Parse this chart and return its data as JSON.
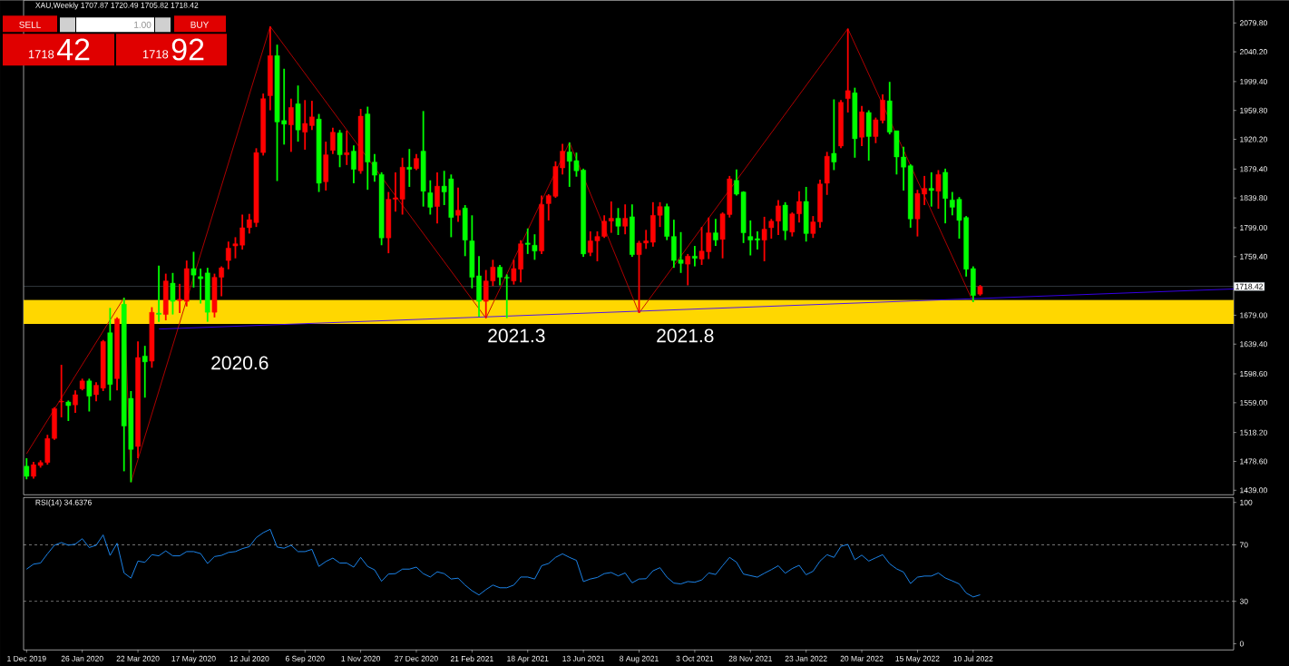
{
  "chart_data": [
    {
      "type": "candlestick",
      "title": "XAU,Weekly 1707.87 1720.49 1705.82 1718.42",
      "x": [
        "2019-12-01",
        "2019-12-08",
        "2019-12-15",
        "2019-12-22",
        "2019-12-29",
        "2020-01-05",
        "2020-01-12",
        "2020-01-19",
        "2020-01-26",
        "2020-02-02",
        "2020-02-09",
        "2020-02-16",
        "2020-02-23",
        "2020-03-01",
        "2020-03-08",
        "2020-03-15",
        "2020-03-22",
        "2020-03-29",
        "2020-04-05",
        "2020-04-12",
        "2020-04-19",
        "2020-04-26",
        "2020-05-03",
        "2020-05-10",
        "2020-05-17",
        "2020-05-24",
        "2020-05-31",
        "2020-06-07",
        "2020-06-14",
        "2020-06-21",
        "2020-06-28",
        "2020-07-05",
        "2020-07-12",
        "2020-07-19",
        "2020-07-26",
        "2020-08-02",
        "2020-08-09",
        "2020-08-16",
        "2020-08-23",
        "2020-08-30",
        "2020-09-06",
        "2020-09-13",
        "2020-09-20",
        "2020-09-27",
        "2020-10-04",
        "2020-10-11",
        "2020-10-18",
        "2020-10-25",
        "2020-11-01",
        "2020-11-08",
        "2020-11-15",
        "2020-11-22",
        "2020-11-29",
        "2020-12-06",
        "2020-12-13",
        "2020-12-20",
        "2020-12-27",
        "2021-01-03",
        "2021-01-10",
        "2021-01-17",
        "2021-01-24",
        "2021-01-31",
        "2021-02-07",
        "2021-02-14",
        "2021-02-21",
        "2021-02-28",
        "2021-03-07",
        "2021-03-14",
        "2021-03-21",
        "2021-03-28",
        "2021-04-04",
        "2021-04-11",
        "2021-04-18",
        "2021-04-25",
        "2021-05-02",
        "2021-05-09",
        "2021-05-16",
        "2021-05-23",
        "2021-05-30",
        "2021-06-06",
        "2021-06-13",
        "2021-06-20",
        "2021-06-27",
        "2021-07-04",
        "2021-07-11",
        "2021-07-18",
        "2021-07-25",
        "2021-08-01",
        "2021-08-08",
        "2021-08-15",
        "2021-08-22",
        "2021-08-29",
        "2021-09-05",
        "2021-09-12",
        "2021-09-19",
        "2021-09-26",
        "2021-10-03",
        "2021-10-10",
        "2021-10-17",
        "2021-10-24",
        "2021-10-31",
        "2021-11-07",
        "2021-11-14",
        "2021-11-21",
        "2021-11-28",
        "2021-12-05",
        "2021-12-12",
        "2021-12-19",
        "2021-12-26",
        "2022-01-02",
        "2022-01-09",
        "2022-01-16",
        "2022-01-23",
        "2022-01-30",
        "2022-02-06",
        "2022-02-13",
        "2022-02-20",
        "2022-02-27",
        "2022-03-06",
        "2022-03-13",
        "2022-03-20",
        "2022-03-27",
        "2022-04-03",
        "2022-04-10",
        "2022-04-17",
        "2022-04-24",
        "2022-05-01",
        "2022-05-08",
        "2022-05-15",
        "2022-05-22",
        "2022-05-29",
        "2022-06-05",
        "2022-06-12",
        "2022-06-19",
        "2022-06-26",
        "2022-07-03",
        "2022-07-10",
        "2022-07-17"
      ],
      "ohlc": [
        [
          1472,
          1483,
          1454,
          1458
        ],
        [
          1458,
          1478,
          1455,
          1474
        ],
        [
          1473,
          1480,
          1470,
          1477
        ],
        [
          1477,
          1515,
          1474,
          1510
        ],
        [
          1510,
          1553,
          1508,
          1551
        ],
        [
          1560,
          1611,
          1539,
          1561
        ],
        [
          1560,
          1562,
          1534,
          1555
        ],
        [
          1556,
          1576,
          1545,
          1570
        ],
        [
          1578,
          1592,
          1576,
          1589
        ],
        [
          1589,
          1592,
          1547,
          1568
        ],
        [
          1570,
          1587,
          1561,
          1583
        ],
        [
          1579,
          1645,
          1575,
          1643
        ],
        [
          1655,
          1689,
          1562,
          1584
        ],
        [
          1592,
          1676,
          1576,
          1674
        ],
        [
          1694,
          1703,
          1465,
          1527
        ],
        [
          1565,
          1575,
          1450,
          1495
        ],
        [
          1499,
          1643,
          1483,
          1621
        ],
        [
          1623,
          1637,
          1566,
          1615
        ],
        [
          1616,
          1690,
          1607,
          1683
        ],
        [
          1682,
          1747,
          1670,
          1680
        ],
        [
          1680,
          1736,
          1672,
          1726
        ],
        [
          1723,
          1737,
          1680,
          1698
        ],
        [
          1699,
          1722,
          1682,
          1701
        ],
        [
          1698,
          1754,
          1691,
          1743
        ],
        [
          1743,
          1766,
          1717,
          1734
        ],
        [
          1732,
          1743,
          1695,
          1729
        ],
        [
          1737,
          1744,
          1670,
          1683
        ],
        [
          1683,
          1736,
          1676,
          1731
        ],
        [
          1731,
          1746,
          1705,
          1744
        ],
        [
          1754,
          1780,
          1742,
          1771
        ],
        [
          1774,
          1786,
          1757,
          1777
        ],
        [
          1775,
          1817,
          1769,
          1799
        ],
        [
          1799,
          1818,
          1791,
          1810
        ],
        [
          1806,
          1908,
          1800,
          1902
        ],
        [
          1902,
          1983,
          1898,
          1976
        ],
        [
          1980,
          2075,
          1960,
          2035
        ],
        [
          2035,
          2050,
          1863,
          1944
        ],
        [
          1946,
          2017,
          1913,
          1941
        ],
        [
          1940,
          1976,
          1903,
          1964
        ],
        [
          1969,
          1994,
          1917,
          1933
        ],
        [
          1930,
          1974,
          1906,
          1942
        ],
        [
          1939,
          1973,
          1933,
          1951
        ],
        [
          1948,
          1955,
          1848,
          1860
        ],
        [
          1862,
          1917,
          1850,
          1899
        ],
        [
          1905,
          1936,
          1900,
          1930
        ],
        [
          1929,
          1933,
          1882,
          1899
        ],
        [
          1899,
          1932,
          1885,
          1902
        ],
        [
          1904,
          1912,
          1860,
          1879
        ],
        [
          1877,
          1962,
          1873,
          1952
        ],
        [
          1955,
          1965,
          1851,
          1889
        ],
        [
          1889,
          1900,
          1862,
          1871
        ],
        [
          1872,
          1875,
          1775,
          1785
        ],
        [
          1785,
          1848,
          1764,
          1838
        ],
        [
          1838,
          1875,
          1821,
          1840
        ],
        [
          1838,
          1895,
          1817,
          1882
        ],
        [
          1882,
          1907,
          1855,
          1879
        ],
        [
          1880,
          1900,
          1878,
          1894
        ],
        [
          1904,
          1959,
          1828,
          1849
        ],
        [
          1847,
          1864,
          1817,
          1827
        ],
        [
          1828,
          1875,
          1805,
          1856
        ],
        [
          1856,
          1877,
          1830,
          1848
        ],
        [
          1866,
          1872,
          1786,
          1813
        ],
        [
          1816,
          1854,
          1807,
          1823
        ],
        [
          1826,
          1830,
          1760,
          1782
        ],
        [
          1781,
          1816,
          1716,
          1731
        ],
        [
          1733,
          1760,
          1677,
          1698
        ],
        [
          1698,
          1741,
          1675,
          1726
        ],
        [
          1726,
          1755,
          1719,
          1745
        ],
        [
          1745,
          1748,
          1720,
          1731
        ],
        [
          1731,
          1735,
          1675,
          1730
        ],
        [
          1726,
          1755,
          1721,
          1743
        ],
        [
          1742,
          1782,
          1724,
          1777
        ],
        [
          1778,
          1798,
          1763,
          1776
        ],
        [
          1775,
          1790,
          1755,
          1767
        ],
        [
          1767,
          1843,
          1763,
          1831
        ],
        [
          1832,
          1845,
          1809,
          1843
        ],
        [
          1842,
          1890,
          1840,
          1883
        ],
        [
          1881,
          1914,
          1872,
          1904
        ],
        [
          1903,
          1916,
          1855,
          1890
        ],
        [
          1891,
          1902,
          1869,
          1877
        ],
        [
          1878,
          1880,
          1759,
          1763
        ],
        [
          1765,
          1794,
          1760,
          1781
        ],
        [
          1781,
          1794,
          1753,
          1787
        ],
        [
          1787,
          1816,
          1785,
          1808
        ],
        [
          1808,
          1835,
          1792,
          1812
        ],
        [
          1812,
          1826,
          1789,
          1801
        ],
        [
          1801,
          1831,
          1790,
          1812
        ],
        [
          1814,
          1831,
          1759,
          1762
        ],
        [
          1762,
          1781,
          1682,
          1778
        ],
        [
          1778,
          1796,
          1770,
          1781
        ],
        [
          1779,
          1834,
          1773,
          1816
        ],
        [
          1816,
          1834,
          1800,
          1828
        ],
        [
          1828,
          1832,
          1782,
          1787
        ],
        [
          1787,
          1810,
          1744,
          1754
        ],
        [
          1755,
          1793,
          1737,
          1750
        ],
        [
          1749,
          1763,
          1720,
          1760
        ],
        [
          1760,
          1774,
          1746,
          1757
        ],
        [
          1756,
          1800,
          1748,
          1767
        ],
        [
          1766,
          1813,
          1756,
          1792
        ],
        [
          1792,
          1811,
          1774,
          1782
        ],
        [
          1783,
          1820,
          1757,
          1818
        ],
        [
          1817,
          1870,
          1813,
          1866
        ],
        [
          1864,
          1879,
          1843,
          1845
        ],
        [
          1848,
          1849,
          1778,
          1792
        ],
        [
          1787,
          1809,
          1761,
          1782
        ],
        [
          1784,
          1794,
          1769,
          1782
        ],
        [
          1782,
          1814,
          1753,
          1797
        ],
        [
          1799,
          1811,
          1784,
          1808
        ],
        [
          1808,
          1837,
          1789,
          1829
        ],
        [
          1830,
          1834,
          1782,
          1795
        ],
        [
          1793,
          1820,
          1787,
          1818
        ],
        [
          1818,
          1849,
          1806,
          1835
        ],
        [
          1835,
          1855,
          1780,
          1791
        ],
        [
          1791,
          1815,
          1785,
          1807
        ],
        [
          1807,
          1865,
          1799,
          1859
        ],
        [
          1860,
          1903,
          1844,
          1897
        ],
        [
          1901,
          1975,
          1878,
          1889
        ],
        [
          1911,
          1974,
          1908,
          1971
        ],
        [
          1976,
          2072,
          1957,
          1987
        ],
        [
          1984,
          1991,
          1895,
          1921
        ],
        [
          1923,
          1966,
          1911,
          1958
        ],
        [
          1957,
          1960,
          1891,
          1924
        ],
        [
          1924,
          1950,
          1915,
          1947
        ],
        [
          1946,
          1982,
          1942,
          1974
        ],
        [
          1973,
          1999,
          1927,
          1930
        ],
        [
          1932,
          1932,
          1872,
          1896
        ],
        [
          1896,
          1910,
          1850,
          1882
        ],
        [
          1884,
          1886,
          1799,
          1811
        ],
        [
          1811,
          1851,
          1787,
          1846
        ],
        [
          1845,
          1870,
          1830,
          1853
        ],
        [
          1853,
          1875,
          1828,
          1850
        ],
        [
          1849,
          1878,
          1825,
          1872
        ],
        [
          1875,
          1880,
          1805,
          1839
        ],
        [
          1837,
          1848,
          1816,
          1827
        ],
        [
          1838,
          1841,
          1784,
          1809
        ],
        [
          1813,
          1815,
          1732,
          1742
        ],
        [
          1743,
          1746,
          1697,
          1706
        ],
        [
          1707.87,
          1720.49,
          1705.82,
          1718.42
        ]
      ],
      "colors": [
        "#00ff00",
        "#ff0000",
        "#ff0000",
        "#ff0000",
        "#ff0000",
        "#ff0000",
        "#00ff00",
        "#ff0000",
        "#ff0000",
        "#00ff00",
        "#ff0000",
        "#ff0000",
        "#00ff00",
        "#ff0000",
        "#00ff00",
        "#00ff00",
        "#ff0000",
        "#00ff00",
        "#ff0000",
        "#00ff00",
        "#ff0000",
        "#00ff00",
        "#ff0000",
        "#ff0000",
        "#00ff00",
        "#00ff00",
        "#00ff00",
        "#ff0000",
        "#ff0000",
        "#ff0000",
        "#ff0000",
        "#ff0000",
        "#ff0000",
        "#ff0000",
        "#ff0000",
        "#ff0000",
        "#00ff00",
        "#00ff00",
        "#ff0000",
        "#00ff00",
        "#ff0000",
        "#ff0000",
        "#00ff00",
        "#ff0000",
        "#ff0000",
        "#00ff00",
        "#ff0000",
        "#00ff00",
        "#ff0000",
        "#00ff00",
        "#00ff00",
        "#00ff00",
        "#ff0000",
        "#ff0000",
        "#ff0000",
        "#00ff00",
        "#ff0000",
        "#00ff00",
        "#00ff00",
        "#ff0000",
        "#00ff00",
        "#00ff00",
        "#ff0000",
        "#00ff00",
        "#00ff00",
        "#00ff00",
        "#ff0000",
        "#ff0000",
        "#00ff00",
        "#00ff00",
        "#ff0000",
        "#ff0000",
        "#00ff00",
        "#00ff00",
        "#ff0000",
        "#ff0000",
        "#ff0000",
        "#ff0000",
        "#00ff00",
        "#00ff00",
        "#00ff00",
        "#ff0000",
        "#ff0000",
        "#ff0000",
        "#ff0000",
        "#00ff00",
        "#ff0000",
        "#00ff00",
        "#ff0000",
        "#ff0000",
        "#ff0000",
        "#ff0000",
        "#00ff00",
        "#00ff00",
        "#00ff00",
        "#ff0000",
        "#00ff00",
        "#ff0000",
        "#ff0000",
        "#00ff00",
        "#ff0000",
        "#ff0000",
        "#00ff00",
        "#00ff00",
        "#00ff00",
        "#00ff00",
        "#ff0000",
        "#ff0000",
        "#ff0000",
        "#00ff00",
        "#ff0000",
        "#ff0000",
        "#00ff00",
        "#ff0000",
        "#ff0000",
        "#ff0000",
        "#00ff00",
        "#ff0000",
        "#ff0000",
        "#00ff00",
        "#ff0000",
        "#00ff00",
        "#ff0000",
        "#ff0000",
        "#00ff00",
        "#00ff00",
        "#00ff00",
        "#00ff00",
        "#ff0000",
        "#ff0000",
        "#00ff00",
        "#ff0000",
        "#00ff00",
        "#00ff00",
        "#00ff00",
        "#00ff00",
        "#00ff00",
        "#ff0000"
      ],
      "series": [
        {
          "type": "line",
          "color": "#c00000",
          "x": [
            "2019-12-01",
            "2020-03-08",
            "2020-03-15",
            "2020-08-02",
            "2021-03-07",
            "2021-05-30",
            "2021-08-08",
            "2022-03-06",
            "2022-07-10"
          ],
          "values": [
            1489,
            1703,
            1450,
            2075,
            1675,
            1916,
            1682,
            2072,
            1697
          ]
        },
        {
          "type": "line",
          "color": "#3c00ff",
          "x": [
            "2020-04-12",
            "2023-03-29"
          ],
          "values": [
            1660,
            1715
          ]
        }
      ],
      "xlim": [
        "2019-11-28",
        "2023-03-29"
      ],
      "ylim": [
        1432.8,
        2110.9
      ],
      "yticks": [
        {
          "value": 1439,
          "label": "1439.00"
        },
        {
          "value": 1478.6,
          "label": "1478.60"
        },
        {
          "value": 1518.2,
          "label": "1518.20"
        },
        {
          "value": 1559,
          "label": "1559.00"
        },
        {
          "value": 1598.6,
          "label": "1598.60"
        },
        {
          "value": 1639.4,
          "label": "1639.40"
        },
        {
          "value": 1679,
          "label": "1679.00"
        },
        {
          "value": 1759.4,
          "label": "1759.40"
        },
        {
          "value": 1799,
          "label": "1799.00"
        },
        {
          "value": 1839.8,
          "label": "1839.80"
        },
        {
          "value": 1879.4,
          "label": "1879.40"
        },
        {
          "value": 1920.2,
          "label": "1920.20"
        },
        {
          "value": 1959.8,
          "label": "1959.80"
        },
        {
          "value": 1999.4,
          "label": "1999.40"
        },
        {
          "value": 2040.2,
          "label": "2040.20"
        },
        {
          "value": 2079.8,
          "label": "2079.80"
        }
      ],
      "tick_labels": "y",
      "ref_lines": [
        {
          "axis": "y",
          "value": 1718.42,
          "label": "1718.42",
          "color": "#8090a0"
        }
      ],
      "bands": [
        {
          "axis": "y",
          "from": 1667,
          "to": 1700,
          "color": "#ffd700"
        }
      ],
      "annotations": [
        "2020.6",
        "2021.3",
        "2021.8",
        "SELL",
        "1.00",
        "BUY",
        "1718",
        "42",
        "1718",
        "92"
      ]
    },
    {
      "type": "line",
      "title": "RSI(14) 34.6376",
      "x": [
        "2019-12-01",
        "2019-12-08",
        "2019-12-15",
        "2019-12-22",
        "2019-12-29",
        "2020-01-05",
        "2020-01-12",
        "2020-01-19",
        "2020-01-26",
        "2020-02-02",
        "2020-02-09",
        "2020-02-16",
        "2020-02-23",
        "2020-03-01",
        "2020-03-08",
        "2020-03-15",
        "2020-03-22",
        "2020-03-29",
        "2020-04-05",
        "2020-04-12",
        "2020-04-19",
        "2020-04-26",
        "2020-05-03",
        "2020-05-10",
        "2020-05-17",
        "2020-05-24",
        "2020-05-31",
        "2020-06-07",
        "2020-06-14",
        "2020-06-21",
        "2020-06-28",
        "2020-07-05",
        "2020-07-12",
        "2020-07-19",
        "2020-07-26",
        "2020-08-02",
        "2020-08-09",
        "2020-08-16",
        "2020-08-23",
        "2020-08-30",
        "2020-09-06",
        "2020-09-13",
        "2020-09-20",
        "2020-09-27",
        "2020-10-04",
        "2020-10-11",
        "2020-10-18",
        "2020-10-25",
        "2020-11-01",
        "2020-11-08",
        "2020-11-15",
        "2020-11-22",
        "2020-11-29",
        "2020-12-06",
        "2020-12-13",
        "2020-12-20",
        "2020-12-27",
        "2021-01-03",
        "2021-01-10",
        "2021-01-17",
        "2021-01-24",
        "2021-01-31",
        "2021-02-07",
        "2021-02-14",
        "2021-02-21",
        "2021-02-28",
        "2021-03-07",
        "2021-03-14",
        "2021-03-21",
        "2021-03-28",
        "2021-04-04",
        "2021-04-11",
        "2021-04-18",
        "2021-04-25",
        "2021-05-02",
        "2021-05-09",
        "2021-05-16",
        "2021-05-23",
        "2021-05-30",
        "2021-06-06",
        "2021-06-13",
        "2021-06-20",
        "2021-06-27",
        "2021-07-04",
        "2021-07-11",
        "2021-07-18",
        "2021-07-25",
        "2021-08-01",
        "2021-08-08",
        "2021-08-15",
        "2021-08-22",
        "2021-08-29",
        "2021-09-05",
        "2021-09-12",
        "2021-09-19",
        "2021-09-26",
        "2021-10-03",
        "2021-10-10",
        "2021-10-17",
        "2021-10-24",
        "2021-10-31",
        "2021-11-07",
        "2021-11-14",
        "2021-11-21",
        "2021-11-28",
        "2021-12-05",
        "2021-12-12",
        "2021-12-19",
        "2021-12-26",
        "2022-01-02",
        "2022-01-09",
        "2022-01-16",
        "2022-01-23",
        "2022-01-30",
        "2022-02-06",
        "2022-02-13",
        "2022-02-20",
        "2022-02-27",
        "2022-03-06",
        "2022-03-13",
        "2022-03-20",
        "2022-03-27",
        "2022-04-03",
        "2022-04-10",
        "2022-04-17",
        "2022-04-24",
        "2022-05-01",
        "2022-05-08",
        "2022-05-15",
        "2022-05-22",
        "2022-05-29",
        "2022-06-05",
        "2022-06-12",
        "2022-06-19",
        "2022-06-26",
        "2022-07-03",
        "2022-07-10",
        "2022-07-17"
      ],
      "series": [
        {
          "color": "#1e90ff",
          "values": [
            52.8,
            56.3,
            57.1,
            63.6,
            69.7,
            71.6,
            69.7,
            70.5,
            74.3,
            68.1,
            69.7,
            77.0,
            62.5,
            71.1,
            50.1,
            46.4,
            58.5,
            57.6,
            63.0,
            62.2,
            65.7,
            62.2,
            62.2,
            65.2,
            65.2,
            63.8,
            56.8,
            61.7,
            62.5,
            64.6,
            65.2,
            67.3,
            68.7,
            75.1,
            78.6,
            81.0,
            68.4,
            67.6,
            69.7,
            65.2,
            65.2,
            66.8,
            54.7,
            58.2,
            60.6,
            57.1,
            57.1,
            54.2,
            61.1,
            54.7,
            52.3,
            44.2,
            49.3,
            49.6,
            52.8,
            52.8,
            54.2,
            49.6,
            47.2,
            50.9,
            49.6,
            45.8,
            46.4,
            41.5,
            37.5,
            34.5,
            38.3,
            41.5,
            39.6,
            39.6,
            41.5,
            47.2,
            47.2,
            45.8,
            55.2,
            56.8,
            61.1,
            63.6,
            61.1,
            59.0,
            44.0,
            45.8,
            46.9,
            49.6,
            50.4,
            48.0,
            50.1,
            43.1,
            45.8,
            46.0,
            51.6,
            53.8,
            47.1,
            42.9,
            42.3,
            44.0,
            43.5,
            45.1,
            50.1,
            49.0,
            55.2,
            61.1,
            57.7,
            49.3,
            48.2,
            47.1,
            49.9,
            52.4,
            55.2,
            49.9,
            53.2,
            55.5,
            48.8,
            51.3,
            58.5,
            63.0,
            61.1,
            68.9,
            70.3,
            59.4,
            62.7,
            58.5,
            60.8,
            63.0,
            56.6,
            53.0,
            50.7,
            42.6,
            47.1,
            47.9,
            47.9,
            50.1,
            46.5,
            44.5,
            42.3,
            35.9,
            33.1,
            34.6
          ]
        }
      ],
      "xlim": [
        "2019-11-28",
        "2023-03-29"
      ],
      "ylim": [
        -4.4,
        103.5
      ],
      "yticks": [
        0,
        30,
        70,
        100
      ],
      "xticks": [
        {
          "value": "2019-12-01",
          "label": "1 Dec 2019"
        },
        {
          "value": "2020-01-26",
          "label": "26 Jan 2020"
        },
        {
          "value": "2020-03-22",
          "label": "22 Mar 2020"
        },
        {
          "value": "2020-05-17",
          "label": "17 May 2020"
        },
        {
          "value": "2020-07-12",
          "label": "12 Jul 2020"
        },
        {
          "value": "2020-09-06",
          "label": "6 Sep 2020"
        },
        {
          "value": "2020-11-01",
          "label": "1 Nov 2020"
        },
        {
          "value": "2020-12-27",
          "label": "27 Dec 2020"
        },
        {
          "value": "2021-02-21",
          "label": "21 Feb 2021"
        },
        {
          "value": "2021-04-18",
          "label": "18 Apr 2021"
        },
        {
          "value": "2021-06-13",
          "label": "13 Jun 2021"
        },
        {
          "value": "2021-08-08",
          "label": "8 Aug 2021"
        },
        {
          "value": "2021-10-03",
          "label": "3 Oct 2021"
        },
        {
          "value": "2021-11-28",
          "label": "28 Nov 2021"
        },
        {
          "value": "2022-01-23",
          "label": "23 Jan 2022"
        },
        {
          "value": "2022-03-20",
          "label": "20 Mar 2022"
        },
        {
          "value": "2022-05-15",
          "label": "15 May 2022"
        },
        {
          "value": "2022-07-10",
          "label": "10 Jul 2022"
        }
      ],
      "ref_lines": [
        {
          "axis": "y",
          "value": 70,
          "color": "#c8c8c8",
          "line_style": "dashed"
        },
        {
          "axis": "y",
          "value": 30,
          "color": "#c8c8c8",
          "line_style": "dashed"
        }
      ]
    }
  ]
}
